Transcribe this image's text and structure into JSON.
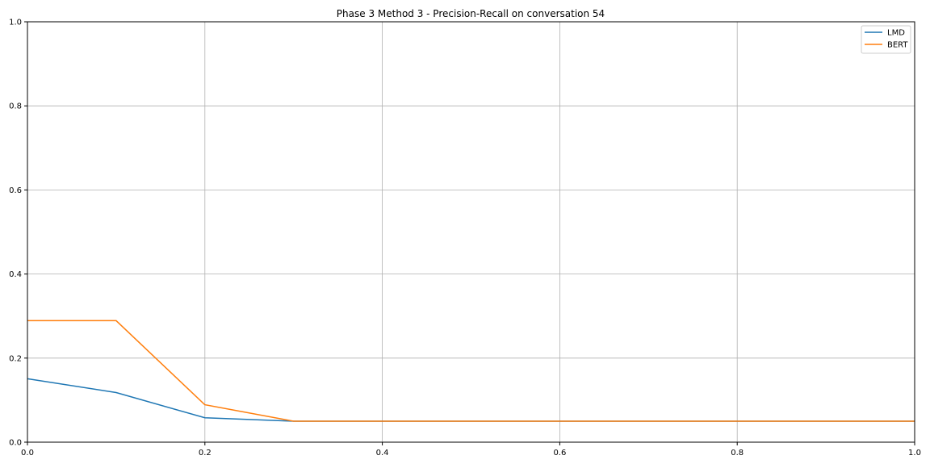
{
  "chart_data": {
    "type": "line",
    "title": "Phase 3 Method 3 - Precision-Recall on conversation 54",
    "xlabel": "",
    "ylabel": "",
    "xlim": [
      0,
      1
    ],
    "ylim": [
      0,
      1
    ],
    "grid": true,
    "legend_position": "top-right",
    "x_ticks": [
      "0.0",
      "0.2",
      "0.4",
      "0.6",
      "0.8",
      "1.0"
    ],
    "y_ticks": [
      "0.0",
      "0.2",
      "0.4",
      "0.6",
      "0.8",
      "1.0"
    ],
    "x": [
      0.0,
      0.1,
      0.2,
      0.3,
      0.4,
      0.5,
      0.6,
      0.7,
      0.8,
      0.9,
      1.0
    ],
    "series": [
      {
        "name": "LMD",
        "color": "#1f77b4",
        "values": [
          0.151,
          0.118,
          0.058,
          0.05,
          0.05,
          0.05,
          0.05,
          0.05,
          0.05,
          0.05,
          0.05
        ]
      },
      {
        "name": "BERT",
        "color": "#ff7f0e",
        "values": [
          0.289,
          0.289,
          0.089,
          0.05,
          0.05,
          0.05,
          0.05,
          0.05,
          0.05,
          0.05,
          0.05
        ]
      }
    ]
  }
}
